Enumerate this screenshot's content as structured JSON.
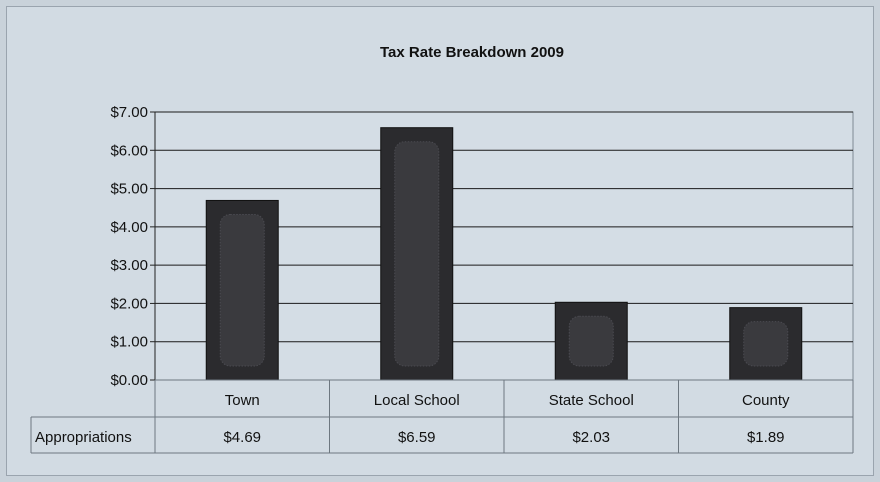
{
  "chart_data": {
    "type": "bar",
    "title": "Tax Rate Breakdown 2009",
    "categories": [
      "Town",
      "Local School",
      "State School",
      "County"
    ],
    "series": [
      {
        "name": "Appropriations",
        "values": [
          4.69,
          6.59,
          2.03,
          1.89
        ]
      }
    ],
    "value_labels": [
      "$4.69",
      "$6.59",
      "$2.03",
      "$1.89"
    ],
    "y_ticks": [
      "$0.00",
      "$1.00",
      "$2.00",
      "$3.00",
      "$4.00",
      "$5.00",
      "$6.00",
      "$7.00"
    ],
    "ylim": [
      0,
      7
    ],
    "grid": true,
    "legend": "data-table-below",
    "colors": {
      "bar": "#2b2b2e",
      "bar_inner": "#3a3a3e",
      "plot_bg": "#d4dde5",
      "grid": "#1a1a1a"
    }
  }
}
